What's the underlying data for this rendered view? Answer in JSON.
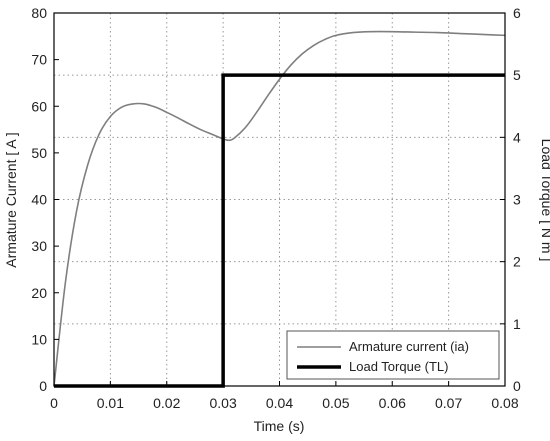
{
  "chart_data": {
    "type": "line",
    "title": "",
    "xlabel": "Time (s)",
    "ylabel": "Armature Current  [ A ]",
    "y2label": "Load Torque  [ N m ]",
    "xlim": [
      0,
      0.08
    ],
    "ylim": [
      0,
      80
    ],
    "y2lim": [
      0,
      6
    ],
    "xticks": [
      "0",
      "0.01",
      "0.02",
      "0.03",
      "0.04",
      "0.05",
      "0.06",
      "0.07",
      "0.08"
    ],
    "yticks": [
      "0",
      "10",
      "20",
      "30",
      "40",
      "50",
      "60",
      "70",
      "80"
    ],
    "y2ticks": [
      "0",
      "1",
      "2",
      "3",
      "4",
      "5",
      "6"
    ],
    "grid": true,
    "legend_position": "bottom-right",
    "series": [
      {
        "name": "Armature current (ia)",
        "axis": "left",
        "color": "#7f7f7f",
        "x": [
          0,
          0.002,
          0.004,
          0.006,
          0.008,
          0.01,
          0.012,
          0.014,
          0.016,
          0.018,
          0.02,
          0.022,
          0.024,
          0.026,
          0.028,
          0.03,
          0.031,
          0.032,
          0.034,
          0.036,
          0.038,
          0.04,
          0.042,
          0.044,
          0.046,
          0.048,
          0.05,
          0.053,
          0.056,
          0.06,
          0.064,
          0.068,
          0.072,
          0.076,
          0.08
        ],
        "y": [
          0,
          22,
          37.5,
          47.5,
          54,
          57.8,
          59.8,
          60.5,
          60.5,
          59.8,
          58.7,
          57.5,
          56.2,
          55,
          54,
          53,
          52.7,
          53.2,
          55.5,
          58.8,
          62.4,
          65.8,
          68.8,
          71.2,
          73,
          74.3,
          75.2,
          75.8,
          76,
          76,
          75.9,
          75.8,
          75.6,
          75.4,
          75.2
        ]
      },
      {
        "name": "Load Torque (TL)",
        "axis": "right",
        "color": "#000000",
        "x": [
          0,
          0.03,
          0.03,
          0.08
        ],
        "y": [
          0,
          0,
          5,
          5
        ]
      }
    ]
  }
}
